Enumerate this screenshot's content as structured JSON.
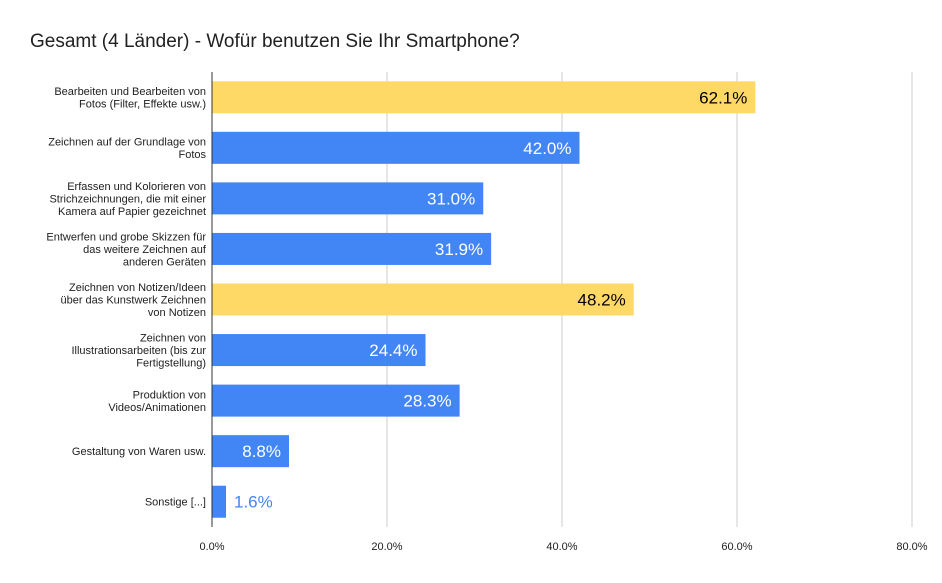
{
  "chart_data": {
    "type": "bar",
    "orientation": "horizontal",
    "title": "Gesamt (4 Länder) - Wofür benutzen Sie Ihr Smartphone?",
    "categories": [
      [
        "Bearbeiten und Bearbeiten von",
        "Fotos (Filter, Effekte usw.)"
      ],
      [
        "Zeichnen auf der Grundlage von",
        "Fotos"
      ],
      [
        "Erfassen und Kolorieren von",
        "Strichzeichnungen, die mit einer",
        "Kamera auf Papier gezeichnet"
      ],
      [
        "Entwerfen und grobe Skizzen für",
        "das weitere Zeichnen auf",
        "anderen Geräten"
      ],
      [
        "Zeichnen von Notizen/Ideen",
        "über das Kunstwerk Zeichnen",
        "von Notizen"
      ],
      [
        "Zeichnen von",
        "Illustrationsarbeiten (bis zur",
        "Fertigstellung)"
      ],
      [
        "Produktion von",
        "Videos/Animationen"
      ],
      [
        "Gestaltung von Waren usw."
      ],
      [
        "Sonstige [...]"
      ]
    ],
    "values": [
      62.1,
      42.0,
      31.0,
      31.9,
      48.2,
      24.4,
      28.3,
      8.8,
      1.6
    ],
    "data_labels": [
      "62.1%",
      "42.0%",
      "31.0%",
      "31.9%",
      "48.2%",
      "24.4%",
      "28.3%",
      "8.8%",
      "1.6%"
    ],
    "highlighted": [
      true,
      false,
      false,
      false,
      true,
      false,
      false,
      false,
      false
    ],
    "xlim": [
      0,
      80
    ],
    "x_ticks": [
      0,
      20,
      40,
      60,
      80
    ],
    "x_tick_labels": [
      "0.0%",
      "20.0%",
      "40.0%",
      "60.0%",
      "80.0%"
    ],
    "grid": true,
    "legend": "none",
    "colors": {
      "bar": "#4285f4",
      "bar_highlight": "#ffd966",
      "label_on_bar": "#ffffff",
      "label_on_highlight": "#000000",
      "label_outside": "#4285f4",
      "gridline": "#cccccc",
      "axis": "#333333"
    }
  }
}
